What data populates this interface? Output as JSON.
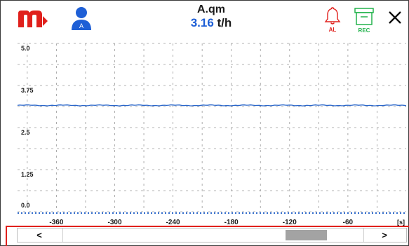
{
  "header": {
    "logo": "brand-logo-m",
    "user_icon": "user-icon",
    "user_badge": "A",
    "title": "A.qm",
    "value": "3.16",
    "unit": "t/h",
    "alarm_label": "AL",
    "rec_label": "REC",
    "close_icon": "close-icon"
  },
  "colors": {
    "brand_red": "#e0201c",
    "value_blue": "#1e5fd6",
    "rec_green": "#22b24c",
    "trace_blue": "#2a66c9"
  },
  "chart_data": {
    "type": "line",
    "x_unit": "[s]",
    "xlim": [
      -400,
      0
    ],
    "ylim": [
      0,
      5
    ],
    "yticks": [
      "5.0",
      "3.75",
      "2.5",
      "1.25",
      "0.0"
    ],
    "xticks": [
      "-360",
      "-300",
      "-240",
      "-180",
      "-120",
      "-60"
    ],
    "grid": true,
    "series": [
      {
        "color": "#2a66c9",
        "x": [
          -400,
          0
        ],
        "y": [
          3.16,
          3.16
        ]
      }
    ]
  },
  "scrollbar": {
    "left_label": "<",
    "right_label": ">",
    "position": 0.86,
    "thumb_fraction": 0.14
  }
}
